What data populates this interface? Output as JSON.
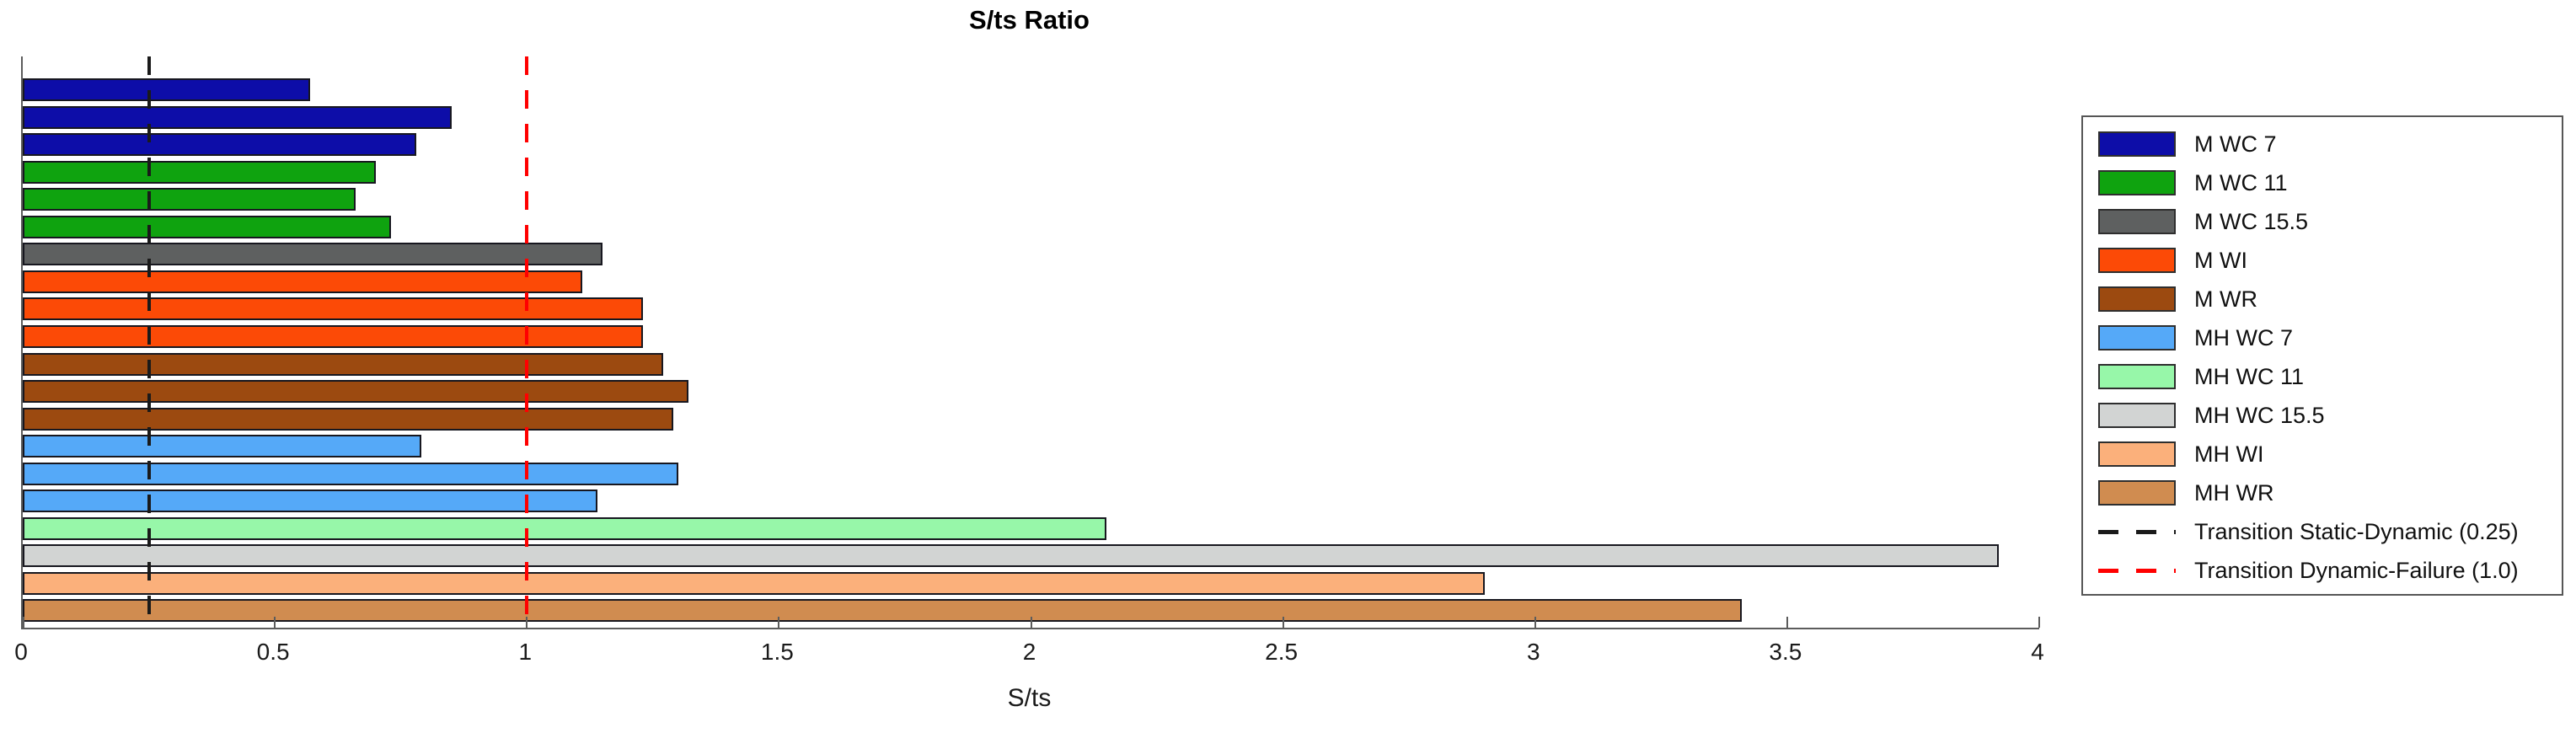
{
  "chart_data": {
    "type": "bar",
    "orientation": "horizontal",
    "title": "S/ts Ratio",
    "xlabel": "S/ts",
    "xlim": [
      0,
      4
    ],
    "xticks": [
      0,
      0.5,
      1,
      1.5,
      2,
      2.5,
      3,
      3.5,
      4
    ],
    "xtick_labels": [
      "0",
      "0.5",
      "1",
      "1.5",
      "2",
      "2.5",
      "3",
      "3.5",
      "4"
    ],
    "grid": false,
    "legend_position": "right-outside",
    "bars": [
      {
        "label": "M WC 7",
        "value": 0.57
      },
      {
        "label": "M WC 7",
        "value": 0.85
      },
      {
        "label": "M WC 7",
        "value": 0.78
      },
      {
        "label": "M WC 11",
        "value": 0.7
      },
      {
        "label": "M WC 11",
        "value": 0.66
      },
      {
        "label": "M WC 11",
        "value": 0.73
      },
      {
        "label": "M WC 15.5",
        "value": 1.15
      },
      {
        "label": "M WI",
        "value": 1.11
      },
      {
        "label": "M WI",
        "value": 1.23
      },
      {
        "label": "M WI",
        "value": 1.23
      },
      {
        "label": "M WR",
        "value": 1.27
      },
      {
        "label": "M WR",
        "value": 1.32
      },
      {
        "label": "M WR",
        "value": 1.29
      },
      {
        "label": "MH WC 7",
        "value": 0.79
      },
      {
        "label": "MH WC 7",
        "value": 1.3
      },
      {
        "label": "MH WC 7",
        "value": 1.14
      },
      {
        "label": "MH WC 11",
        "value": 2.15
      },
      {
        "label": "MH WC 15.5",
        "value": 3.92
      },
      {
        "label": "MH WI",
        "value": 2.9
      },
      {
        "label": "MH WR",
        "value": 3.41
      }
    ],
    "reference_lines": [
      {
        "label": "Transition Static-Dynamic (0.25)",
        "value": 0.25,
        "color": "#1a1a1a",
        "style": "dashed"
      },
      {
        "label": "Transition Dynamic-Failure (1.0)",
        "value": 1.0,
        "color": "#ff0000",
        "style": "dashed"
      }
    ],
    "legend": {
      "entries": [
        {
          "label": "M WC 7",
          "type": "patch",
          "color": "#0d0da8"
        },
        {
          "label": "M WC 11",
          "type": "patch",
          "color": "#0fa30f"
        },
        {
          "label": "M WC 15.5",
          "type": "patch",
          "color": "#5e6060"
        },
        {
          "label": "M WI",
          "type": "patch",
          "color": "#fc4a06"
        },
        {
          "label": "M WR",
          "type": "patch",
          "color": "#9c4a10"
        },
        {
          "label": "MH WC 7",
          "type": "patch",
          "color": "#55a9f8"
        },
        {
          "label": "MH WC 11",
          "type": "patch",
          "color": "#97f7a9"
        },
        {
          "label": "MH WC 15.5",
          "type": "patch",
          "color": "#d2d4d3"
        },
        {
          "label": "MH WI",
          "type": "patch",
          "color": "#fbb07b"
        },
        {
          "label": "MH WR",
          "type": "patch",
          "color": "#d08c50"
        },
        {
          "label": "Transition Static-Dynamic (0.25)",
          "type": "dashed-line",
          "color": "#1a1a1a"
        },
        {
          "label": "Transition Dynamic-Failure (1.0)",
          "type": "dashed-line",
          "color": "#ff0000"
        }
      ]
    }
  }
}
